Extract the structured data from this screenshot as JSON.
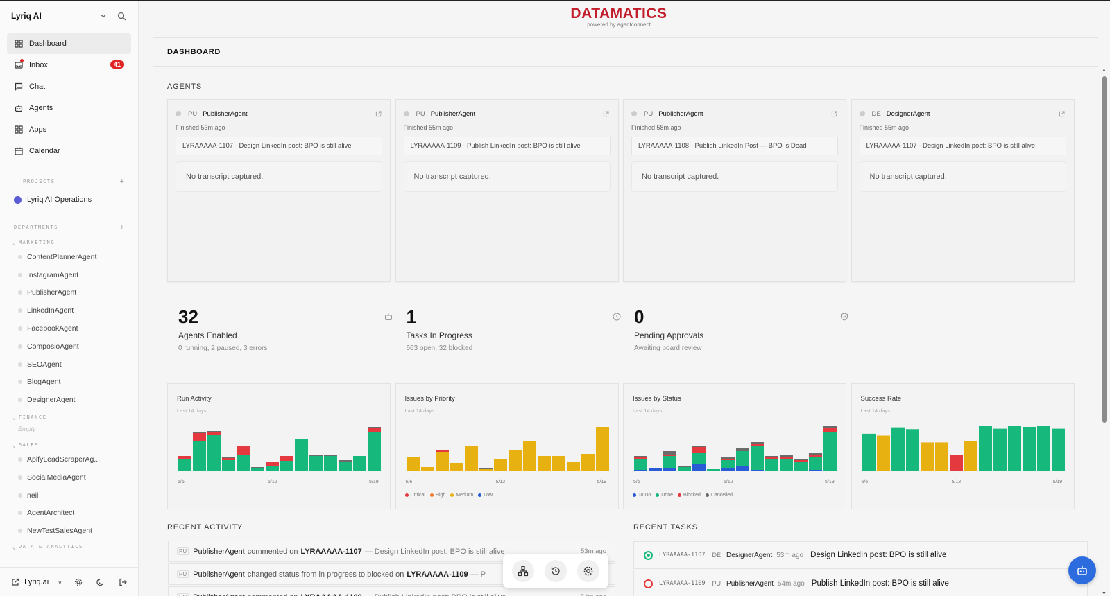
{
  "workspace": {
    "name": "Lyriq AI"
  },
  "nav": [
    {
      "label": "Dashboard",
      "icon": "dashboard-icon",
      "active": true
    },
    {
      "label": "Inbox",
      "icon": "inbox-icon",
      "badge": "41"
    },
    {
      "label": "Chat",
      "icon": "chat-icon"
    },
    {
      "label": "Agents",
      "icon": "bot-icon"
    },
    {
      "label": "Apps",
      "icon": "apps-icon"
    },
    {
      "label": "Calendar",
      "icon": "calendar-icon"
    }
  ],
  "projects": {
    "label": "PROJECTS",
    "items": [
      "Lyriq AI Operations"
    ]
  },
  "departments": {
    "label": "DEPARTMENTS",
    "marketing": {
      "label": "MARKETING",
      "items": [
        "ContentPlannerAgent",
        "InstagramAgent",
        "PublisherAgent",
        "LinkedInAgent",
        "FacebookAgent",
        "ComposioAgent",
        "SEOAgent",
        "BlogAgent",
        "DesignerAgent"
      ]
    },
    "finance": {
      "label": "FINANCE",
      "empty": "Empty"
    },
    "sales": {
      "label": "SALES",
      "items": [
        "ApifyLeadScraperAg...",
        "SocialMediaAgent",
        "neil",
        "AgentArchitect",
        "NewTestSalesAgent"
      ]
    },
    "data": {
      "label": "DATA & ANALYTICS"
    }
  },
  "footer": {
    "name": "Lyriq.ai",
    "chevron": "v"
  },
  "brand": {
    "name": "DATAMATICS",
    "sub": "powered by agentconnect"
  },
  "page_title": "DASHBOARD",
  "agents_title": "AGENTS",
  "agent_cards": [
    {
      "abbr": "PU",
      "name": "PublisherAgent",
      "status": "Finished 53m ago",
      "issue": "LYRAAAAA-1107 - Design LinkedIn post: BPO is still alive",
      "transcript": "No transcript captured."
    },
    {
      "abbr": "PU",
      "name": "PublisherAgent",
      "status": "Finished 55m ago",
      "issue": "LYRAAAAA-1109 - Publish LinkedIn post: BPO is still alive",
      "transcript": "No transcript captured."
    },
    {
      "abbr": "PU",
      "name": "PublisherAgent",
      "status": "Finished 58m ago",
      "issue": "LYRAAAAA-1108 - Publish LinkedIn Post — BPO is Dead",
      "transcript": "No transcript captured."
    },
    {
      "abbr": "DE",
      "name": "DesignerAgent",
      "status": "Finished 55m ago",
      "issue": "LYRAAAAA-1107 - Design LinkedIn post: BPO is still alive",
      "transcript": "No transcript captured."
    }
  ],
  "stats": [
    {
      "value": "32",
      "label": "Agents Enabled",
      "desc": "0 running, 2 paused, 3 errors",
      "icon": "bot-icon"
    },
    {
      "value": "1",
      "label": "Tasks In Progress",
      "desc": "663 open, 32 blocked",
      "icon": "clock-icon"
    },
    {
      "value": "0",
      "label": "Pending Approvals",
      "desc": "Awaiting board review",
      "icon": "shield-icon"
    }
  ],
  "colors": {
    "green": "#16b97b",
    "red": "#e53940",
    "yellow": "#e8b112",
    "blue": "#2a5bd7",
    "gray": "#6b6b6b",
    "orange": "#f07a2a",
    "brand": "#c21d2b"
  },
  "chart_data": [
    {
      "type": "bar",
      "title": "Run Activity",
      "subtitle": "Last 14 days",
      "x_ticks": [
        "5/6",
        "5/12",
        "5/19"
      ],
      "ylim": [
        0,
        66
      ],
      "stacked": true,
      "series": [
        {
          "color": "#16b97b",
          "values": [
            18,
            44,
            53,
            16,
            24,
            5,
            7,
            15,
            46,
            22,
            22,
            14,
            22,
            56
          ]
        },
        {
          "color": "#e53940",
          "values": [
            4,
            11,
            3,
            3,
            12,
            0,
            6,
            7,
            0,
            0,
            0,
            0,
            0,
            6
          ]
        },
        {
          "color": "#6b6b6b",
          "values": [
            0,
            1,
            2,
            1,
            0,
            1,
            0,
            0,
            1,
            1,
            1,
            2,
            0,
            2
          ]
        }
      ]
    },
    {
      "type": "bar",
      "title": "Issues by Priority",
      "subtitle": "Last 14 days",
      "x_ticks": [
        "5/6",
        "5/12",
        "5/19"
      ],
      "ylim": [
        0,
        66
      ],
      "legend": [
        "Critical",
        "High",
        "Medium",
        "Low"
      ],
      "stacked": true,
      "series": [
        {
          "name": "Medium",
          "color": "#e8b112",
          "values": [
            21,
            6,
            28,
            12,
            36,
            3,
            17,
            31,
            43,
            22,
            22,
            13,
            25,
            64
          ]
        },
        {
          "name": "High",
          "color": "#e53940",
          "values": [
            0,
            0,
            2,
            0,
            0,
            0,
            0,
            0,
            0,
            0,
            0,
            0,
            0,
            0
          ]
        },
        {
          "name": "Low",
          "color": "#6b6b6b",
          "values": [
            0,
            0,
            0,
            0,
            0,
            1,
            0,
            0,
            0,
            0,
            0,
            0,
            0,
            0
          ]
        }
      ]
    },
    {
      "type": "bar",
      "title": "Issues by Status",
      "subtitle": "Last 14 days",
      "x_ticks": [
        "5/6",
        "5/12",
        "5/19"
      ],
      "ylim": [
        0,
        66
      ],
      "legend": [
        "To Do",
        "Done",
        "Blocked",
        "Cancelled"
      ],
      "stacked": true,
      "series": [
        {
          "name": "To Do",
          "color": "#2a5bd7",
          "values": [
            2,
            4,
            4,
            0,
            10,
            0,
            4,
            8,
            2,
            0,
            0,
            0,
            2,
            0
          ]
        },
        {
          "name": "Done",
          "color": "#16b97b",
          "values": [
            16,
            0,
            18,
            6,
            17,
            3,
            12,
            21,
            34,
            18,
            17,
            14,
            18,
            56
          ]
        },
        {
          "name": "Blocked",
          "color": "#e53940",
          "values": [
            2,
            0,
            2,
            0,
            8,
            0,
            2,
            0,
            4,
            2,
            4,
            2,
            4,
            7
          ]
        },
        {
          "name": "Cancelled",
          "color": "#6b6b6b",
          "values": [
            2,
            0,
            5,
            2,
            2,
            0,
            2,
            4,
            2,
            2,
            2,
            2,
            2,
            2
          ]
        }
      ]
    },
    {
      "type": "bar",
      "title": "Success Rate",
      "subtitle": "Last 14 days",
      "x_ticks": [
        "5/6",
        "5/12",
        "5/19"
      ],
      "ylim": [
        0,
        100
      ],
      "categories": [
        "5/6",
        "5/7",
        "5/8",
        "5/9",
        "5/10",
        "5/11",
        "5/12",
        "5/13",
        "5/14",
        "5/15",
        "5/16",
        "5/17",
        "5/18",
        "5/19"
      ],
      "values": [
        82,
        78,
        96,
        92,
        63,
        63,
        35,
        66,
        100,
        93,
        100,
        97,
        100,
        93
      ],
      "colors": [
        "#16b97b",
        "#e8b112",
        "#16b97b",
        "#16b97b",
        "#e8b112",
        "#e8b112",
        "#e53940",
        "#e8b112",
        "#16b97b",
        "#16b97b",
        "#16b97b",
        "#16b97b",
        "#16b97b",
        "#16b97b"
      ]
    }
  ],
  "recent_activity": {
    "title": "RECENT ACTIVITY",
    "rows": [
      {
        "abbr": "PU",
        "who": "PublisherAgent",
        "verb": "commented on",
        "id": "LYRAAAAA-1107",
        "title": "— Design LinkedIn post: BPO is still alive",
        "time": "53m ago"
      },
      {
        "abbr": "PU",
        "who": "PublisherAgent",
        "verb": "changed status from in progress to blocked on",
        "id": "LYRAAAAA-1109",
        "title": "— P",
        "time": "...o"
      },
      {
        "abbr": "PU",
        "who": "PublisherAgent",
        "verb": "commented on",
        "id": "LYRAAAAA-1109",
        "title": "— Publish LinkedIn post: BPO is still alive",
        "time": "54m ago"
      }
    ]
  },
  "recent_tasks": {
    "title": "RECENT TASKS",
    "rows": [
      {
        "id": "LYRAAAAA-1107",
        "abbr": "DE",
        "who": "DesignerAgent",
        "time": "53m ago",
        "title": "Design LinkedIn post: BPO is still alive",
        "status_color": "#16b97b"
      },
      {
        "id": "LYRAAAAA-1109",
        "abbr": "PU",
        "who": "PublisherAgent",
        "time": "54m ago",
        "title": "Publish LinkedIn post: BPO is still alive",
        "status_color": "#e53940"
      }
    ]
  }
}
